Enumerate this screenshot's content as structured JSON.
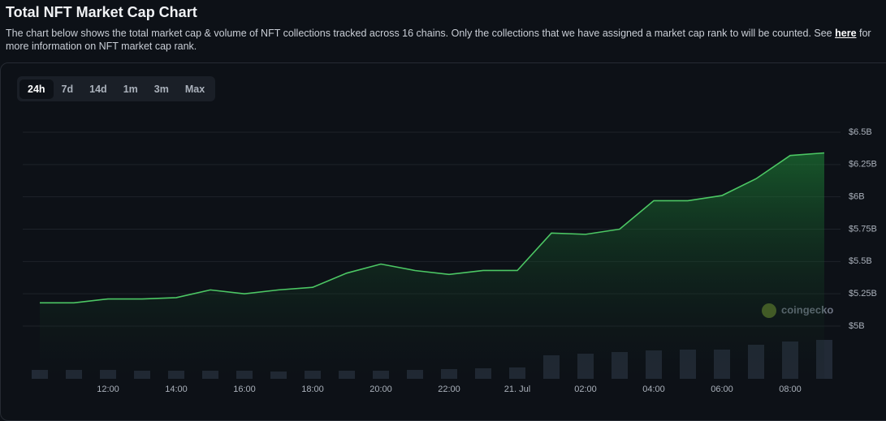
{
  "header": {
    "title": "Total NFT Market Cap Chart",
    "description": [
      "The chart below shows the total market cap & volume of NFT collections tracked across 16 chains. Only the collections that we have assigned a market cap rank to will be counted. See ",
      "here",
      " for more information on NFT market cap rank."
    ]
  },
  "tabs": {
    "items": [
      "24h",
      "7d",
      "14d",
      "1m",
      "3m",
      "Max"
    ],
    "active": "24h"
  },
  "chart_data": {
    "type": "line",
    "watermark": "coingecko",
    "categories": [
      null,
      null,
      "12:00",
      null,
      "14:00",
      null,
      "16:00",
      null,
      "18:00",
      null,
      "20:00",
      null,
      "22:00",
      null,
      "21. Jul",
      null,
      "02:00",
      null,
      "04:00",
      null,
      "06:00",
      null,
      "08:00",
      null
    ],
    "series": [
      {
        "color": "#4cc764",
        "values": [
          5.18,
          5.18,
          5.21,
          5.21,
          5.22,
          5.28,
          5.25,
          5.28,
          5.3,
          5.41,
          5.48,
          5.43,
          5.4,
          5.43,
          5.43,
          5.72,
          5.71,
          5.75,
          5.97,
          5.97,
          6.01,
          6.14,
          6.32,
          6.34
        ]
      },
      {
        "type": "bar",
        "axis": "y2",
        "color": "#222a36",
        "values": [
          11,
          11,
          11,
          10,
          10,
          10,
          10,
          9,
          10,
          10,
          10,
          11,
          12,
          13,
          14,
          29,
          31,
          33,
          35,
          36,
          36,
          42,
          46,
          48
        ]
      }
    ],
    "ylim": [
      5,
      6.5
    ],
    "yticks": [
      {
        "value": 5,
        "label": "$5B"
      },
      {
        "value": 5.25,
        "label": "$5.25B"
      },
      {
        "value": 5.5,
        "label": "$5.5B"
      },
      {
        "value": 5.75,
        "label": "$5.75B"
      },
      {
        "value": 6,
        "label": "$6B"
      },
      {
        "value": 6.25,
        "label": "$6.25B"
      },
      {
        "value": 6.5,
        "label": "$6.5B"
      }
    ],
    "y2lim": [
      0,
      60
    ],
    "grid": true
  }
}
